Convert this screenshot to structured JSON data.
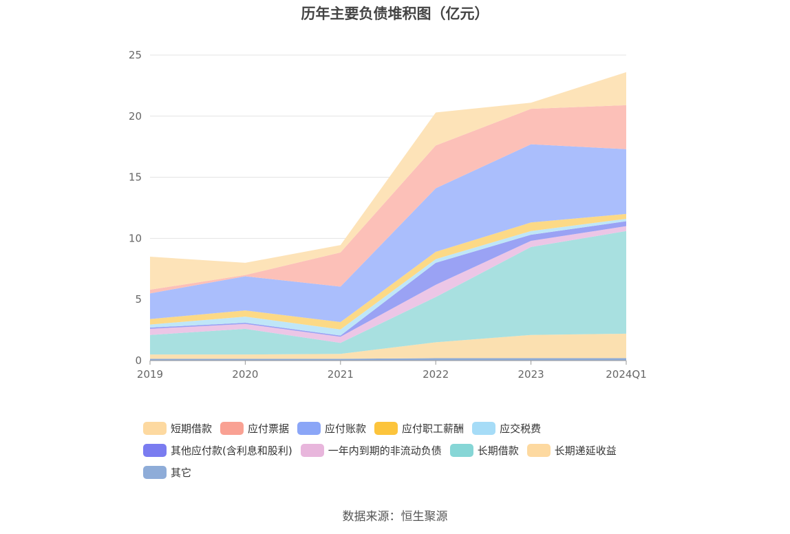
{
  "title": "历年主要负债堆积图（亿元）",
  "source": "数据来源：恒生聚源",
  "chart_data": {
    "type": "area",
    "stacked": true,
    "categories": [
      "2019",
      "2020",
      "2021",
      "2022",
      "2023",
      "2024Q1"
    ],
    "ylim": [
      0,
      25
    ],
    "yticks": [
      0,
      5,
      10,
      15,
      20,
      25
    ],
    "grid": true,
    "legend_position": "bottom",
    "series": [
      {
        "name": "其它",
        "color": "#8eacd8",
        "values": [
          0.15,
          0.15,
          0.15,
          0.2,
          0.2,
          0.2
        ]
      },
      {
        "name": "长期递延收益",
        "color": "#fbe0b0",
        "values": [
          0.35,
          0.35,
          0.4,
          1.3,
          1.9,
          2.0
        ]
      },
      {
        "name": "长期借款",
        "color": "#a8e0e0",
        "values": [
          1.6,
          2.1,
          0.9,
          3.7,
          7.2,
          8.4
        ]
      },
      {
        "name": "一年内到期的非流动负债",
        "color": "#ecc6e6",
        "values": [
          0.5,
          0.4,
          0.5,
          1.0,
          0.5,
          0.4
        ]
      },
      {
        "name": "其他应付款(含利息和股利)",
        "color": "#9aa2f4",
        "values": [
          0.1,
          0.1,
          0.1,
          1.8,
          0.5,
          0.4
        ]
      },
      {
        "name": "应交税费",
        "color": "#bfe6f8",
        "values": [
          0.25,
          0.5,
          0.5,
          0.3,
          0.3,
          0.2
        ]
      },
      {
        "name": "应付职工薪酬",
        "color": "#fcd986",
        "values": [
          0.45,
          0.5,
          0.6,
          0.6,
          0.7,
          0.4
        ]
      },
      {
        "name": "应付账款",
        "color": "#aabefc",
        "values": [
          2.1,
          2.8,
          2.9,
          5.2,
          6.4,
          5.3
        ]
      },
      {
        "name": "应付票据",
        "color": "#fcc0b8",
        "values": [
          0.3,
          0.1,
          2.8,
          3.5,
          2.9,
          3.6
        ]
      },
      {
        "name": "短期借款",
        "color": "#fde3b8",
        "values": [
          2.7,
          1.0,
          0.6,
          2.7,
          0.5,
          2.7
        ]
      }
    ],
    "legend": [
      {
        "name": "短期借款",
        "color": "#fdd9a0"
      },
      {
        "name": "应付票据",
        "color": "#f9a193"
      },
      {
        "name": "应付账款",
        "color": "#8ba6f7"
      },
      {
        "name": "应付职工薪酬",
        "color": "#fcc43c"
      },
      {
        "name": "应交税费",
        "color": "#a6dcf7"
      },
      {
        "name": "其他应付款(含利息和股利)",
        "color": "#7a7cf0"
      },
      {
        "name": "一年内到期的非流动负债",
        "color": "#e8b6dc"
      },
      {
        "name": "长期借款",
        "color": "#86d6d6"
      },
      {
        "name": "长期递延收益",
        "color": "#fdd9a0"
      },
      {
        "name": "其它",
        "color": "#8eacd8"
      }
    ]
  }
}
